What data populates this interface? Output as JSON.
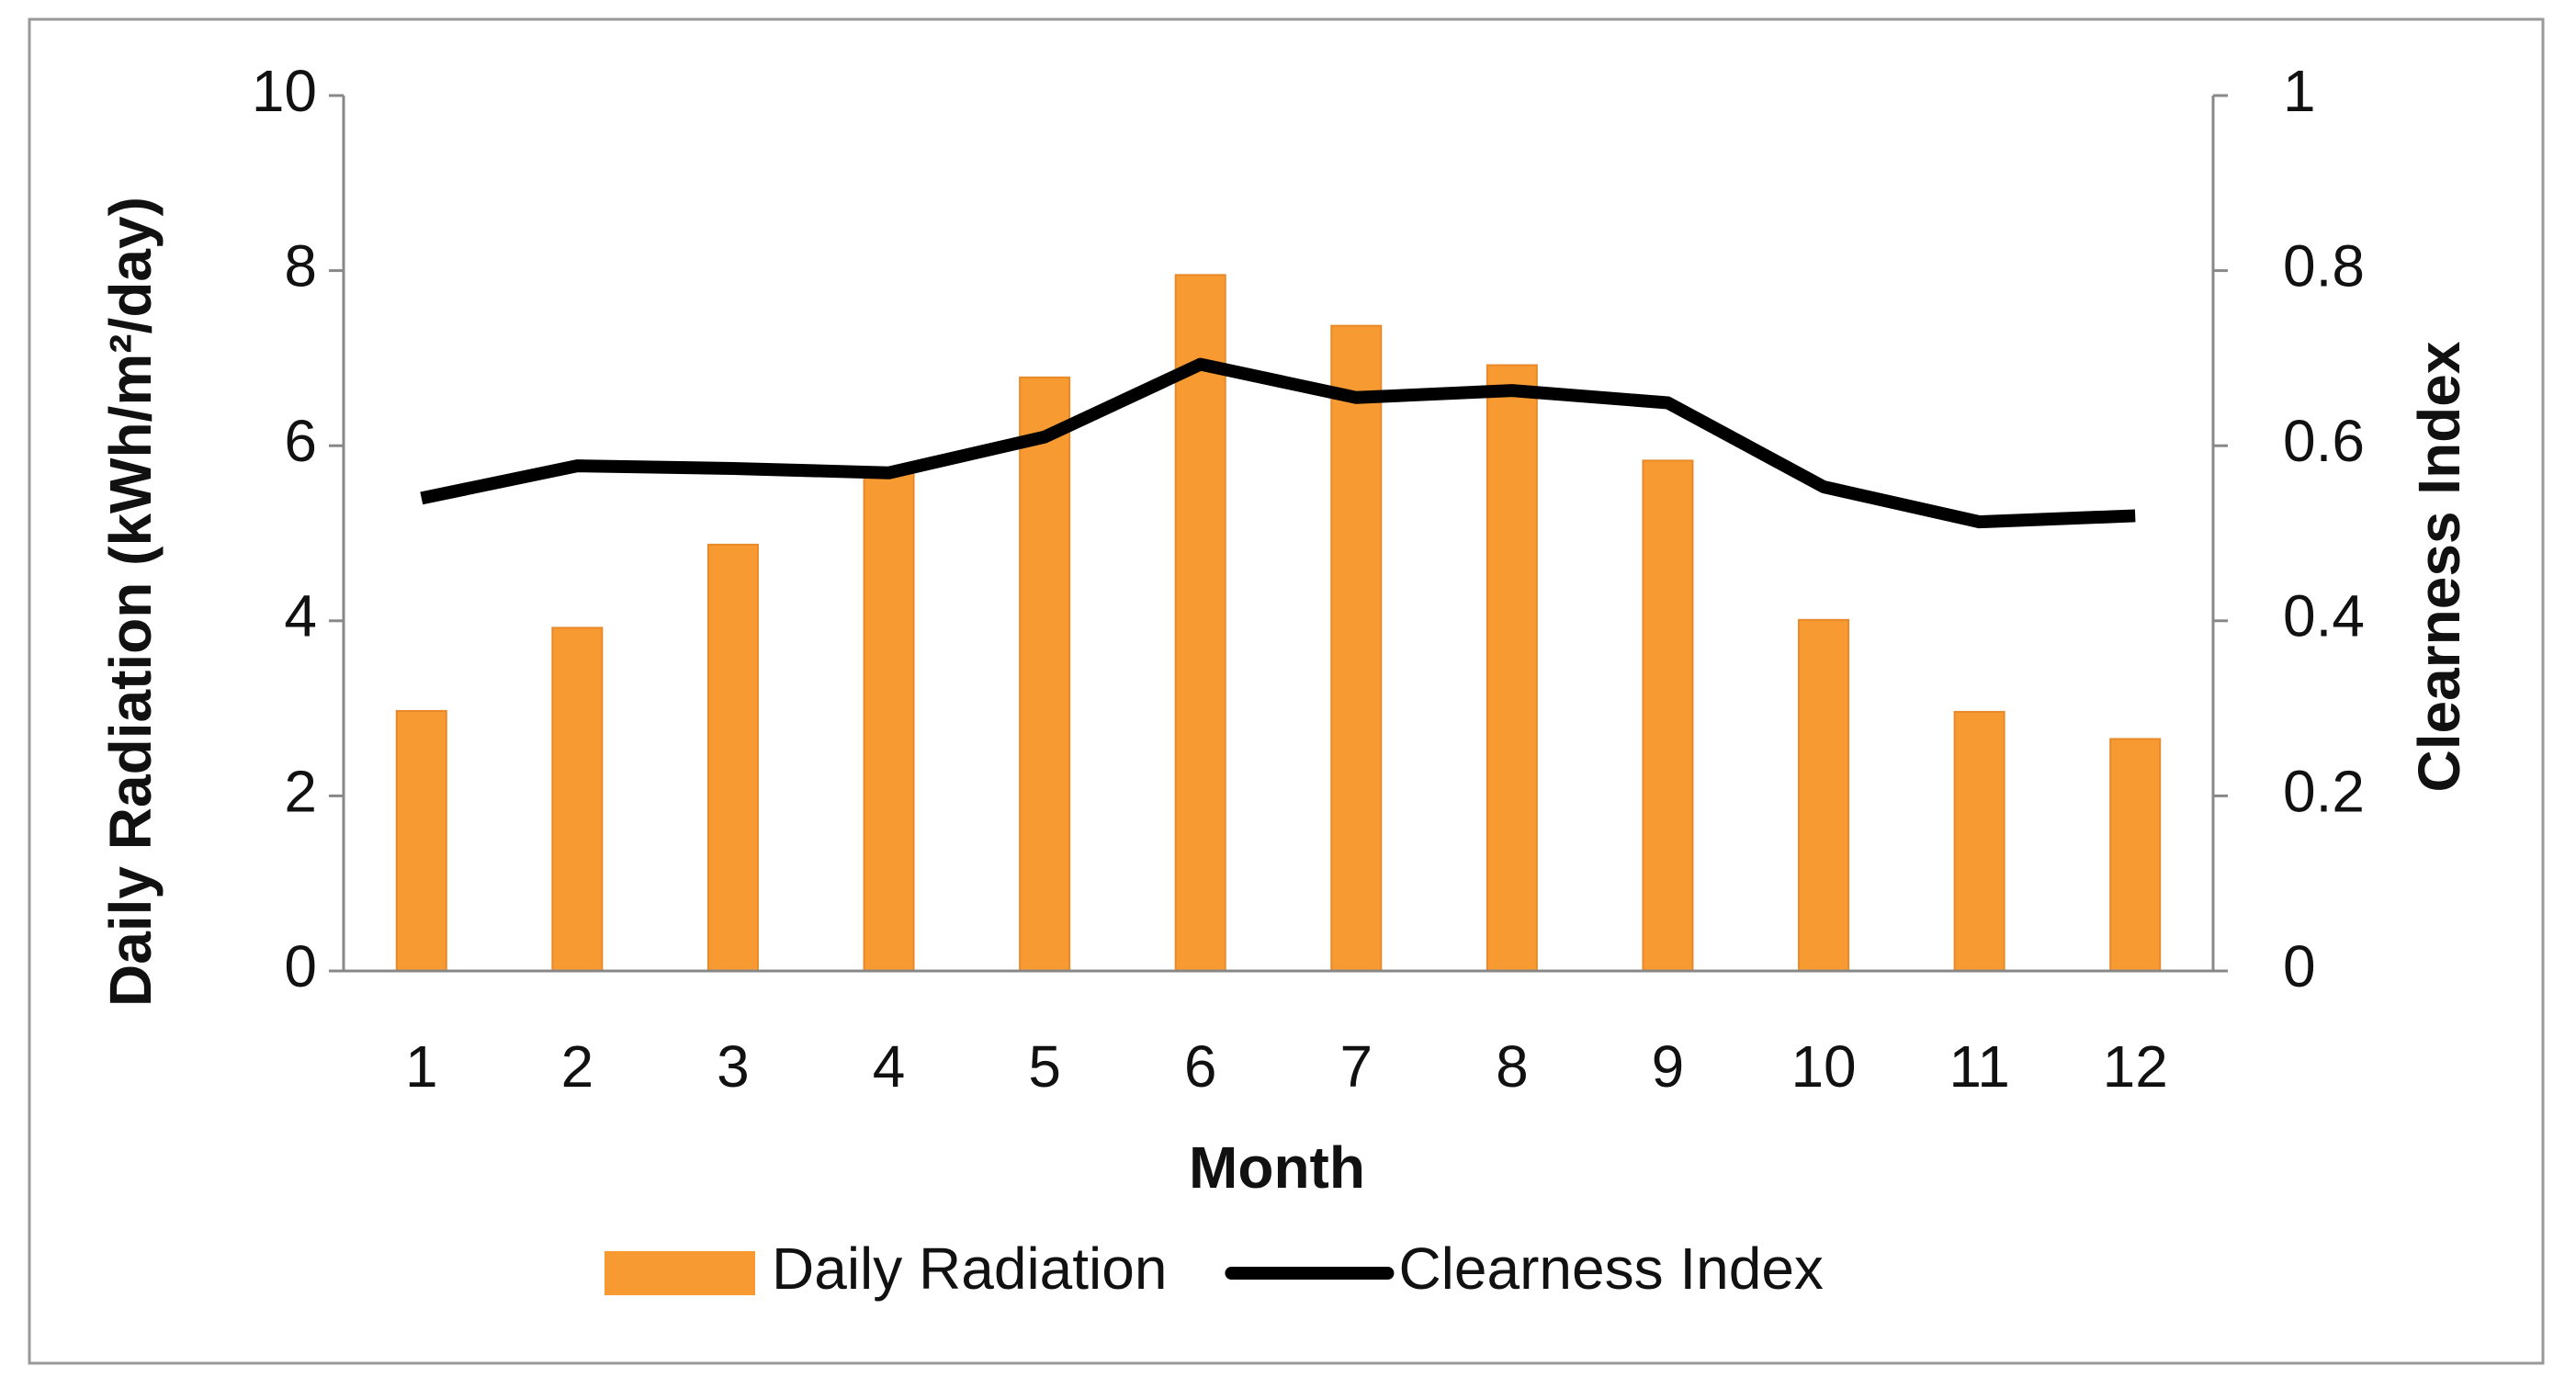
{
  "chart_data": {
    "type": "combo",
    "x_label": "Month",
    "y_label": "Daily Radiation (kWh/m²/day)",
    "y2_label": "Clearness Index",
    "categories": [
      "1",
      "2",
      "3",
      "4",
      "5",
      "6",
      "7",
      "8",
      "9",
      "10",
      "11",
      "12"
    ],
    "series": [
      {
        "name": "Daily Radiation",
        "type": "bar",
        "color": "#f79a32",
        "values": [
          2.97,
          3.92,
          4.87,
          5.7,
          6.78,
          7.95,
          7.37,
          6.92,
          5.83,
          4.01,
          2.96,
          2.65
        ]
      },
      {
        "name": "Clearness Index",
        "type": "line",
        "axis": "y2",
        "color": "#000000",
        "values": [
          0.54,
          0.577,
          0.574,
          0.569,
          0.61,
          0.693,
          0.655,
          0.663,
          0.649,
          0.553,
          0.513,
          0.52
        ]
      }
    ],
    "ylim": [
      0,
      10
    ],
    "yticks": [
      0,
      2,
      4,
      6,
      8,
      10
    ],
    "y2lim": [
      0,
      1
    ],
    "y2ticks": [
      0,
      0.2,
      0.4,
      0.6,
      0.8,
      1
    ],
    "grid": false,
    "legend": "bottom"
  }
}
